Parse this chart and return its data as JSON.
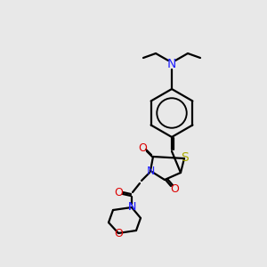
{
  "background_color": "#e8e8e8",
  "C": "#000000",
  "N": "#2222ff",
  "O": "#dd0000",
  "S": "#aaaa00",
  "lw": 1.6,
  "figsize": [
    3.0,
    3.0
  ],
  "dpi": 100
}
